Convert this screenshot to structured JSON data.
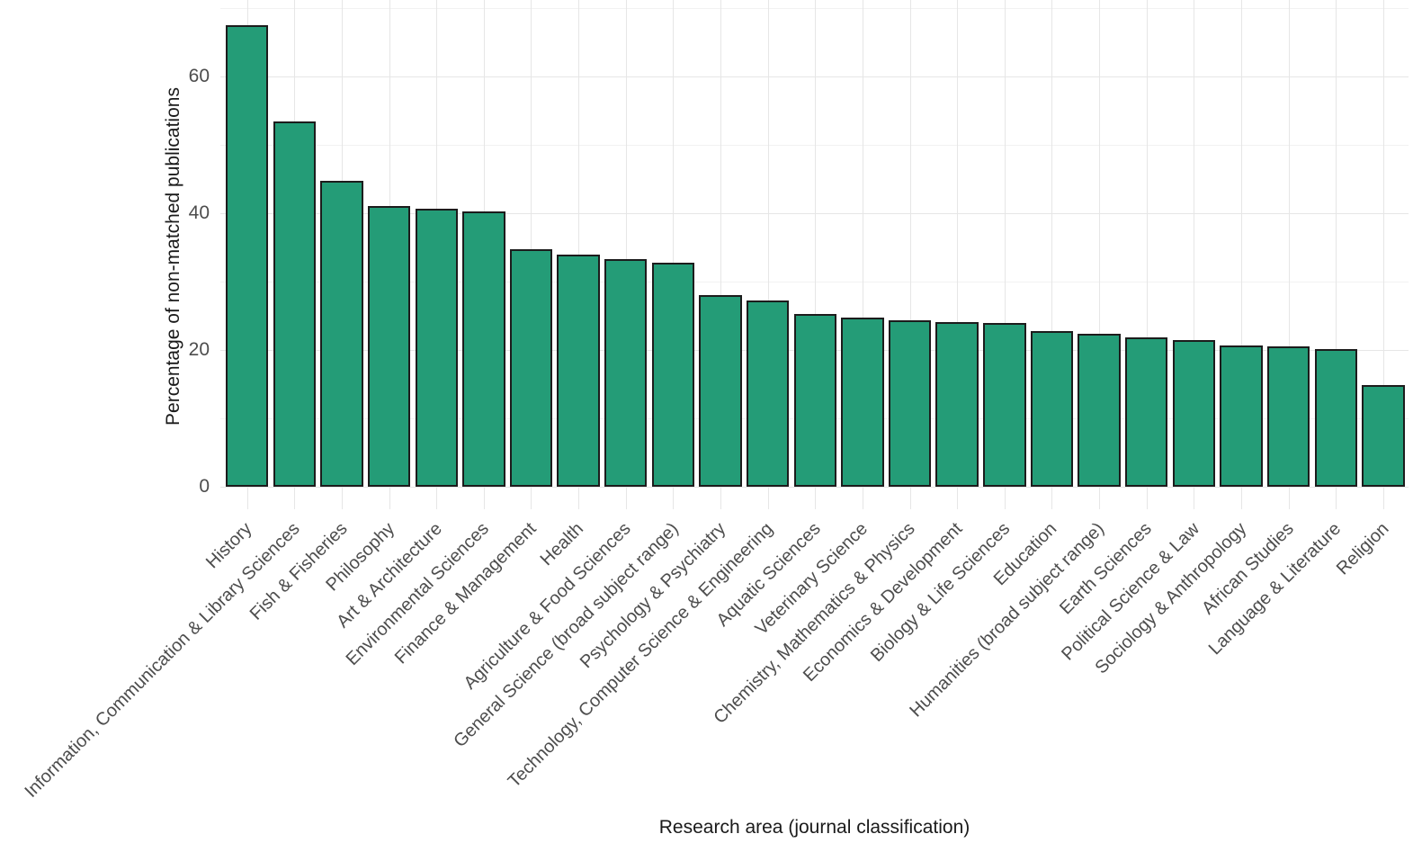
{
  "chart_data": {
    "type": "bar",
    "title": "",
    "xlabel": "Research area (journal classification)",
    "ylabel": "Percentage of non-matched publications",
    "categories": [
      "History",
      "Information, Communication & Library Sciences",
      "Fish & Fisheries",
      "Philosophy",
      "Art & Architecture",
      "Environmental Sciences",
      "Finance & Management",
      "Health",
      "Agriculture & Food Sciences",
      "General Science (broad subject range)",
      "Psychology & Psychiatry",
      "Technology, Computer Science & Engineering",
      "Aquatic Sciences",
      "Veterinary Science",
      "Chemistry, Mathematics & Physics",
      "Economics & Development",
      "Biology & Life Sciences",
      "Education",
      "Humanities (broad subject range)",
      "Earth Sciences",
      "Political Science & Law",
      "Sociology & Anthropology",
      "African Studies",
      "Language & Literature",
      "Religion"
    ],
    "values": [
      67.5,
      53.4,
      44.8,
      41.0,
      40.7,
      40.3,
      34.8,
      33.9,
      33.3,
      32.8,
      28.0,
      27.3,
      25.3,
      24.7,
      24.4,
      24.1,
      24.0,
      22.7,
      22.4,
      21.9,
      21.4,
      20.7,
      20.5,
      20.1,
      14.9
    ],
    "ylim": [
      0,
      71
    ],
    "yticks": [
      0,
      20,
      40,
      60
    ],
    "y_minor_gridlines": [
      10,
      30,
      50,
      70
    ],
    "grid": "horizontal major+minor, vertical major at each category",
    "legend": "none",
    "bar_fill_color": "#249c77",
    "bar_border_color": "#1c1c1c",
    "gridline_major_color": "#e6e6e6",
    "gridline_minor_color": "#f2f2f2",
    "tick_label_color": "#4d4d4d",
    "axis_title_color": "#1a1a1a"
  }
}
